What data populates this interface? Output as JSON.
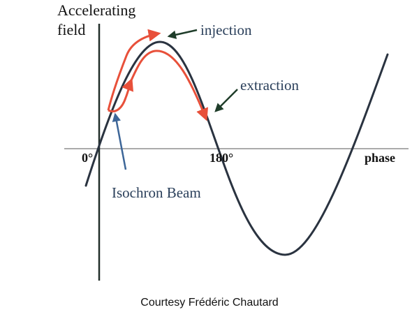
{
  "diagram": {
    "y_axis_label_line1": "Accelerating",
    "y_axis_label_line2": "field",
    "x_axis_label": "phase",
    "tick_0": "0°",
    "tick_180": "180°",
    "label_injection": "injection",
    "label_extraction": "extraction",
    "label_isochron_beam": "Isochron Beam"
  },
  "credit": "Courtesy Frédéric Chautard",
  "colors": {
    "curve": "#2a3340",
    "beam_path": "#e8503a",
    "injection_arrow": "#1f3d2a",
    "extraction_arrow": "#1f3d2a",
    "isochron_arrow": "#3d6698",
    "label_text": "#2a3f5a",
    "axis": "#444444"
  }
}
